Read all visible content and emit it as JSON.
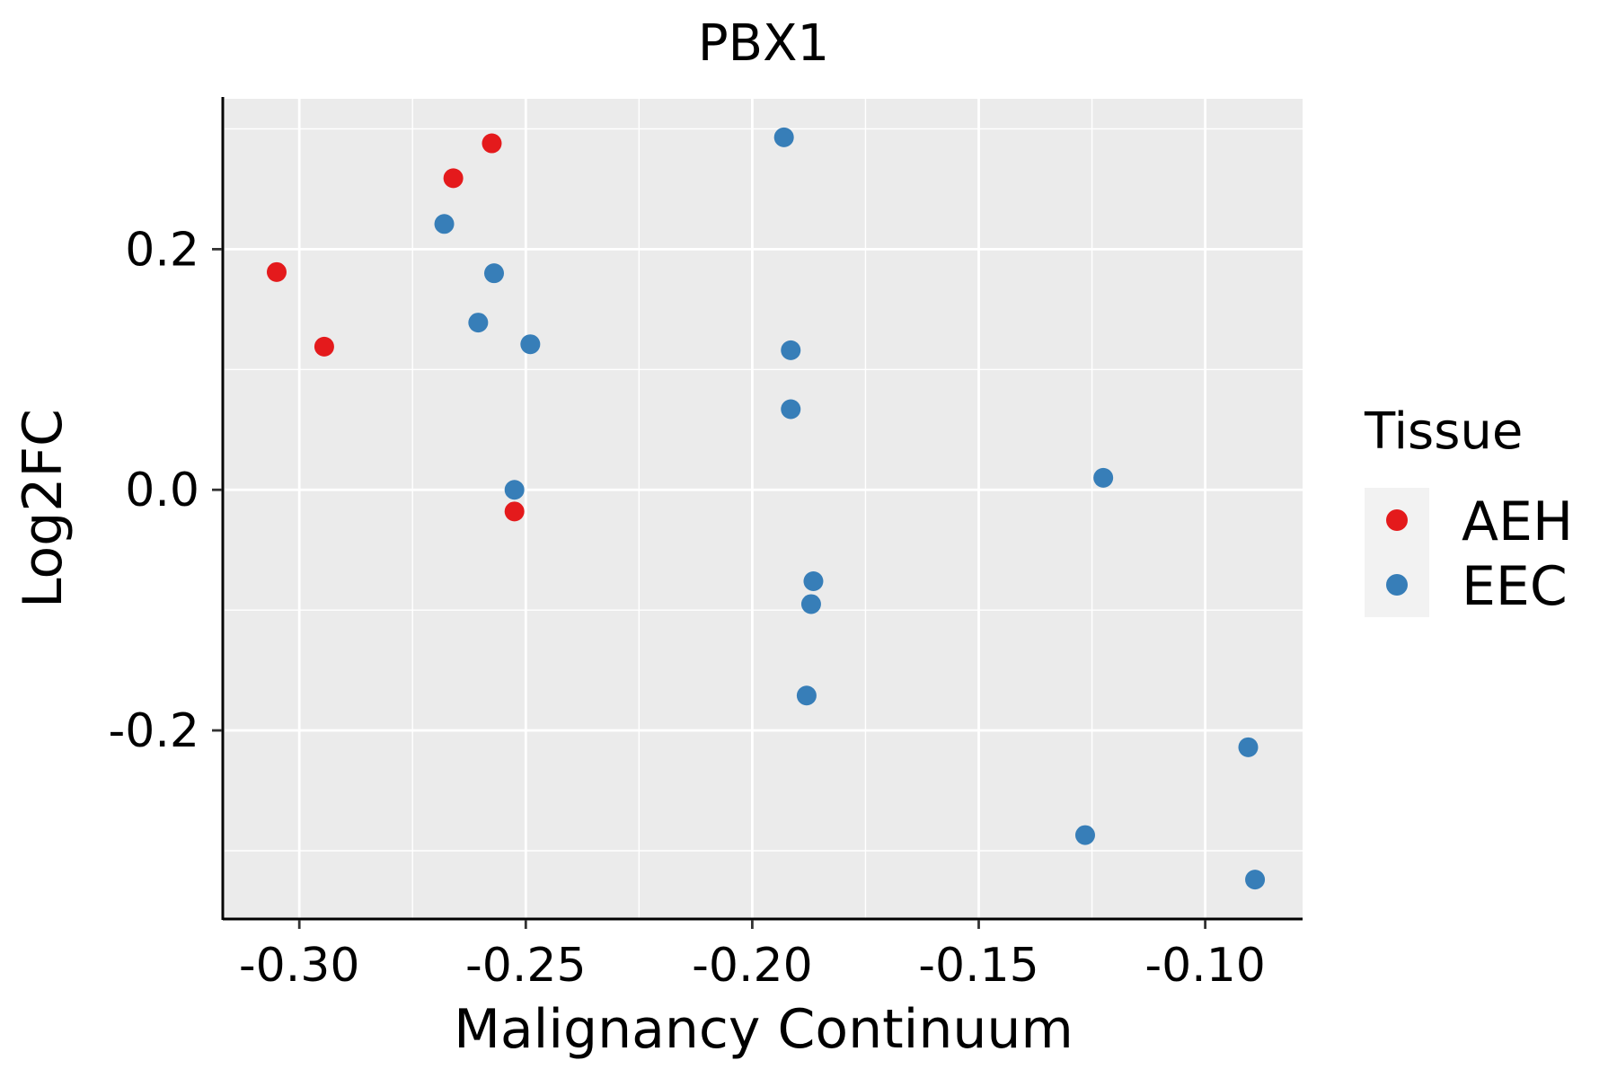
{
  "chart_data": {
    "type": "scatter",
    "title": "PBX1",
    "xlabel": "Malignancy Continuum",
    "ylabel": "Log2FC",
    "xlim": [
      -0.3165,
      -0.0785
    ],
    "ylim": [
      -0.356,
      0.325
    ],
    "x_ticks": [
      -0.3,
      -0.25,
      -0.2,
      -0.15,
      -0.1
    ],
    "x_tick_labels": [
      "-0.30",
      "-0.25",
      "-0.20",
      "-0.15",
      "-0.10"
    ],
    "y_ticks": [
      -0.2,
      0.0,
      0.2
    ],
    "y_tick_labels": [
      "-0.2",
      "0.0",
      "0.2"
    ],
    "grid": true,
    "legend": {
      "title": "Tissue",
      "position": "right",
      "entries": [
        {
          "label": "AEH",
          "color": "#E41A1C"
        },
        {
          "label": "EEC",
          "color": "#377EB8"
        }
      ]
    },
    "series": [
      {
        "name": "AEH",
        "color": "#E41A1C",
        "points": [
          {
            "x": -0.305,
            "y": 0.181
          },
          {
            "x": -0.2945,
            "y": 0.119
          },
          {
            "x": -0.266,
            "y": 0.259
          },
          {
            "x": -0.2575,
            "y": 0.288
          },
          {
            "x": -0.2525,
            "y": -0.018
          }
        ]
      },
      {
        "name": "EEC",
        "color": "#377EB8",
        "points": [
          {
            "x": -0.268,
            "y": 0.221
          },
          {
            "x": -0.2605,
            "y": 0.139
          },
          {
            "x": -0.257,
            "y": 0.18
          },
          {
            "x": -0.2525,
            "y": 0.0
          },
          {
            "x": -0.249,
            "y": 0.121
          },
          {
            "x": -0.193,
            "y": 0.293
          },
          {
            "x": -0.1915,
            "y": 0.116
          },
          {
            "x": -0.1915,
            "y": 0.067
          },
          {
            "x": -0.1865,
            "y": -0.076
          },
          {
            "x": -0.187,
            "y": -0.095
          },
          {
            "x": -0.188,
            "y": -0.171
          },
          {
            "x": -0.1265,
            "y": -0.287
          },
          {
            "x": -0.1225,
            "y": 0.01
          },
          {
            "x": -0.0905,
            "y": -0.214
          },
          {
            "x": -0.089,
            "y": -0.324
          }
        ]
      }
    ]
  }
}
